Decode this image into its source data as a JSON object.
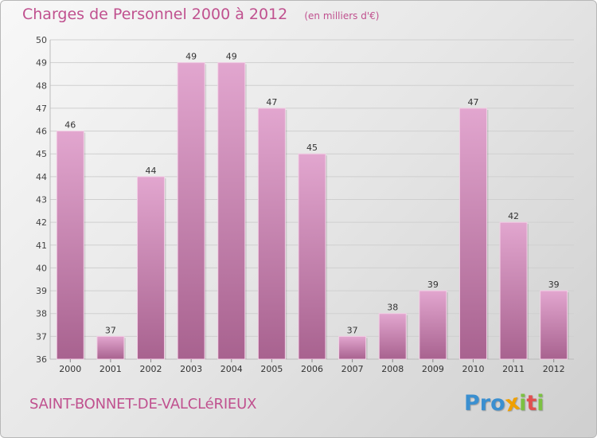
{
  "header": {
    "title": "Charges de Personnel 2000 à 2012",
    "subtitle": "(en milliers d'€)"
  },
  "footer": {
    "town": "SAINT-BONNET-DE-VALCLéRIEUX",
    "logo_letters": [
      {
        "char": "P",
        "color": "#3a8fd0"
      },
      {
        "char": "r",
        "color": "#3a8fd0"
      },
      {
        "char": "o",
        "color": "#3a8fd0"
      },
      {
        "char": "x",
        "color": "#f0a000"
      },
      {
        "char": "i",
        "color": "#7cc142"
      },
      {
        "char": "t",
        "color": "#e05050"
      },
      {
        "char": "i",
        "color": "#7cc142"
      }
    ]
  },
  "colors": {
    "bar_light": "#e2a6cf",
    "bar_dark": "#a8628f",
    "text": "#c0518f"
  },
  "chart_data": {
    "type": "bar",
    "categories": [
      "2000",
      "2001",
      "2002",
      "2003",
      "2004",
      "2005",
      "2006",
      "2007",
      "2008",
      "2009",
      "2010",
      "2011",
      "2012"
    ],
    "values": [
      46,
      37,
      44,
      49,
      49,
      47,
      45,
      37,
      38,
      39,
      47,
      42,
      39
    ],
    "title": "Charges de Personnel 2000 à 2012",
    "xlabel": "",
    "ylabel": "",
    "ylim": [
      36,
      50
    ],
    "yticks": [
      36,
      37,
      38,
      39,
      40,
      41,
      42,
      43,
      44,
      45,
      46,
      47,
      48,
      49,
      50
    ],
    "grid": true,
    "legend": "none"
  }
}
